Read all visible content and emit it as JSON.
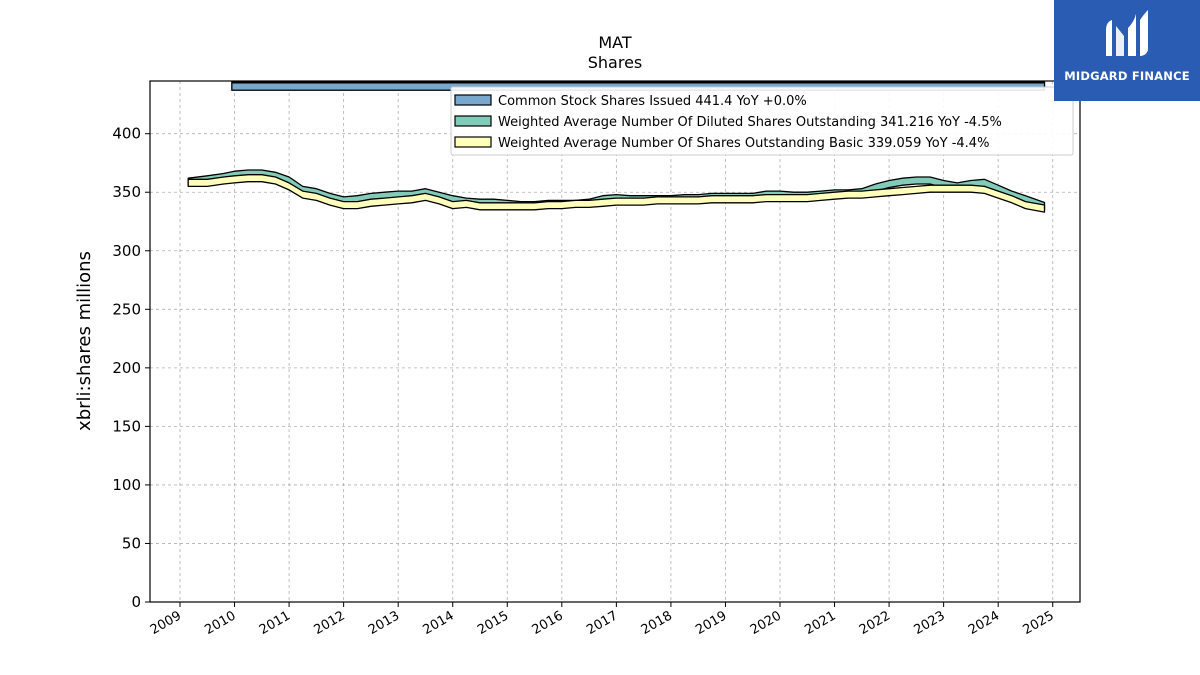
{
  "brand": {
    "name": "MIDGARD FINANCE",
    "bg_color": "#2b5cb3"
  },
  "chart_data": {
    "type": "area",
    "title": "MAT",
    "subtitle": "Shares",
    "ylabel": "xbrli:shares millions",
    "xlabel": "",
    "xlim": [
      2008.45,
      2025.5
    ],
    "ylim": [
      0,
      445
    ],
    "yticks": [
      0,
      50,
      100,
      150,
      200,
      250,
      300,
      350,
      400
    ],
    "xticks": [
      2009,
      2010,
      2011,
      2012,
      2013,
      2014,
      2015,
      2016,
      2017,
      2018,
      2019,
      2020,
      2021,
      2022,
      2023,
      2024,
      2025
    ],
    "grid": true,
    "legend_position": "top-right",
    "series": [
      {
        "name": "Common Stock Shares Issued",
        "legend_label": "Common Stock Shares Issued  441.4 YoY +0.0%",
        "color": "#7aa8cc",
        "x": [
          2009.95,
          2024.85
        ],
        "values": [
          441.4,
          441.4
        ]
      },
      {
        "name": "Weighted Average Number Of Diluted Shares Outstanding",
        "legend_label": "Weighted Average Number Of Diluted Shares Outstanding  341.216 YoY -4.5%",
        "color": "#82cbb8",
        "x": [
          2009.15,
          2009.5,
          2009.8,
          2010.0,
          2010.25,
          2010.5,
          2010.75,
          2011.0,
          2011.25,
          2011.5,
          2011.75,
          2012.0,
          2012.25,
          2012.5,
          2012.75,
          2013.0,
          2013.25,
          2013.5,
          2013.75,
          2014.0,
          2014.25,
          2014.5,
          2014.75,
          2015.0,
          2015.25,
          2015.5,
          2015.75,
          2016.0,
          2016.25,
          2016.5,
          2016.75,
          2017.0,
          2017.25,
          2017.5,
          2017.75,
          2018.0,
          2018.25,
          2018.5,
          2018.75,
          2019.0,
          2019.25,
          2019.5,
          2019.75,
          2020.0,
          2020.25,
          2020.5,
          2020.75,
          2021.0,
          2021.25,
          2021.5,
          2021.75,
          2022.0,
          2022.25,
          2022.5,
          2022.75,
          2023.0,
          2023.25,
          2023.5,
          2023.75,
          2024.0,
          2024.25,
          2024.5,
          2024.85
        ],
        "values": [
          362,
          364,
          366,
          368,
          369,
          369,
          367,
          363,
          355,
          353,
          349,
          346,
          347,
          349,
          350,
          351,
          351,
          353,
          350,
          347,
          345,
          344,
          344,
          343,
          342,
          342,
          343,
          343,
          343,
          344,
          347,
          348,
          347,
          347,
          347,
          347,
          348,
          348,
          349,
          349,
          349,
          349,
          351,
          351,
          350,
          350,
          351,
          352,
          352,
          353,
          357,
          360,
          362,
          363,
          363,
          360,
          358,
          360,
          361,
          356,
          351,
          347,
          341.216
        ]
      },
      {
        "name": "Weighted Average Number Of Shares Outstanding Basic",
        "legend_label": "Weighted Average Number Of Shares Outstanding Basic  339.059 YoY -4.4%",
        "color": "#ffffbb",
        "x": [
          2009.15,
          2009.5,
          2009.8,
          2010.0,
          2010.25,
          2010.5,
          2010.75,
          2011.0,
          2011.25,
          2011.5,
          2011.75,
          2012.0,
          2012.25,
          2012.5,
          2012.75,
          2013.0,
          2013.25,
          2013.5,
          2013.75,
          2014.0,
          2014.25,
          2014.5,
          2014.75,
          2015.0,
          2015.25,
          2015.5,
          2015.75,
          2016.0,
          2016.25,
          2016.5,
          2016.75,
          2017.0,
          2017.25,
          2017.5,
          2017.75,
          2018.0,
          2018.25,
          2018.5,
          2018.75,
          2019.0,
          2019.25,
          2019.5,
          2019.75,
          2020.0,
          2020.25,
          2020.5,
          2020.75,
          2021.0,
          2021.25,
          2021.5,
          2021.75,
          2022.0,
          2022.25,
          2022.5,
          2022.75,
          2023.0,
          2023.25,
          2023.5,
          2023.75,
          2024.0,
          2024.25,
          2024.5,
          2024.85
        ],
        "values": [
          361,
          361,
          363,
          364,
          365,
          365,
          363,
          358,
          351,
          349,
          345,
          342,
          342,
          344,
          345,
          346,
          347,
          349,
          346,
          342,
          343,
          341,
          341,
          341,
          341,
          341,
          342,
          342,
          343,
          343,
          344,
          345,
          345,
          345,
          346,
          346,
          346,
          346,
          347,
          347,
          347,
          347,
          348,
          348,
          348,
          348,
          349,
          350,
          351,
          351,
          352,
          353,
          354,
          355,
          356,
          356,
          356,
          356,
          355,
          351,
          347,
          342,
          339.059
        ]
      }
    ]
  }
}
